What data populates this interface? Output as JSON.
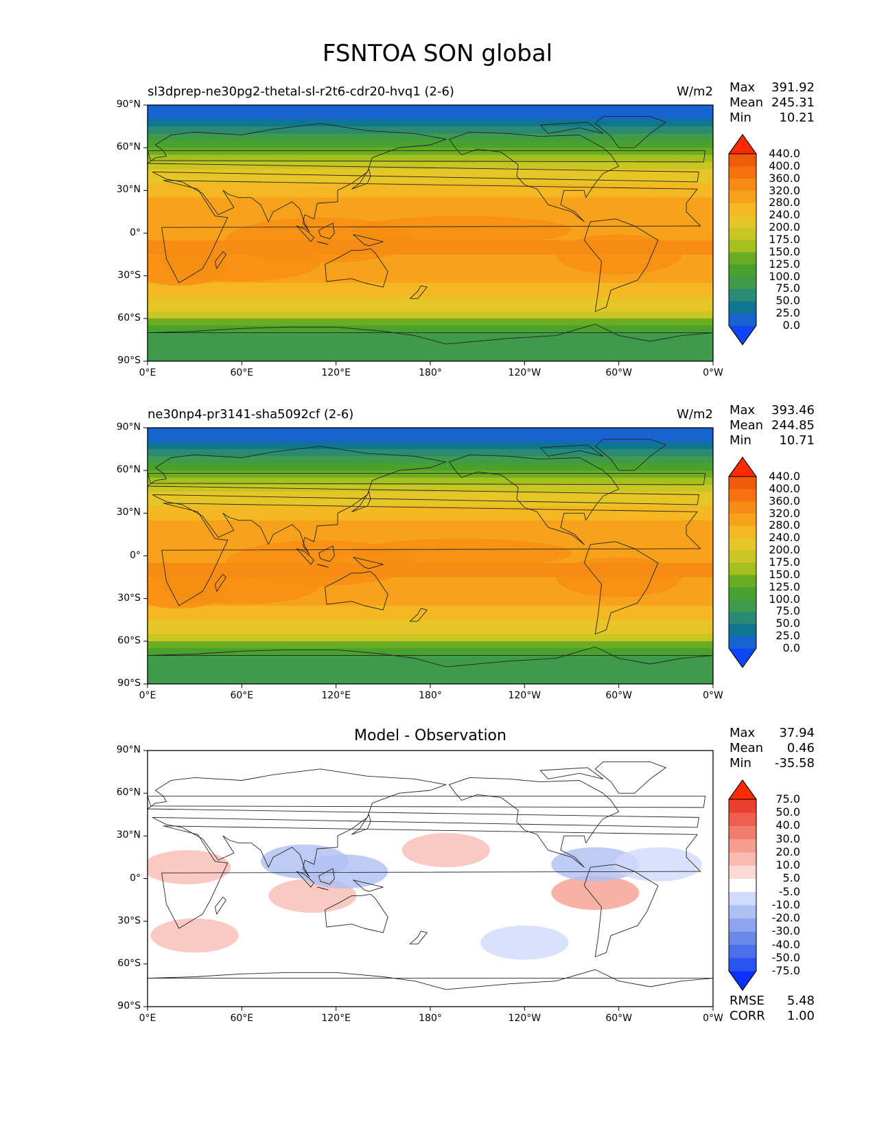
{
  "title": "FSNTOA SON global",
  "ytick_labels": [
    "90°N",
    "60°N",
    "30°N",
    "0°",
    "30°S",
    "60°S",
    "90°S"
  ],
  "xtick_labels": [
    "0°E",
    "60°E",
    "120°E",
    "180°",
    "120°W",
    "60°W",
    "0°W"
  ],
  "panels": [
    {
      "title": "sl3dprep-ne30pg2-thetal-sl-r2t6-cdr20-hvq1 (2-6)",
      "units": "W/m2",
      "stats": [
        {
          "label": "Max",
          "value": "391.92"
        },
        {
          "label": "Mean",
          "value": "245.31"
        },
        {
          "label": "Min",
          "value": "10.21"
        }
      ]
    },
    {
      "title": "ne30np4-pr3141-sha5092cf (2-6)",
      "units": "W/m2",
      "stats": [
        {
          "label": "Max",
          "value": "393.46"
        },
        {
          "label": "Mean",
          "value": "244.85"
        },
        {
          "label": "Min",
          "value": "10.71"
        }
      ]
    },
    {
      "title": "Model - Observation",
      "units": "",
      "stats": [
        {
          "label": "Max",
          "value": "37.94"
        },
        {
          "label": "Mean",
          "value": "0.46"
        },
        {
          "label": "Min",
          "value": "-35.58"
        }
      ],
      "metrics": [
        {
          "label": "RMSE",
          "value": "5.48"
        },
        {
          "label": "CORR",
          "value": "1.00"
        }
      ]
    }
  ],
  "colorbars": {
    "field": {
      "labels": [
        "440.0",
        "400.0",
        "360.0",
        "320.0",
        "280.0",
        "240.0",
        "200.0",
        "175.0",
        "150.0",
        "125.0",
        "100.0",
        "75.0",
        "50.0",
        "25.0",
        "0.0"
      ],
      "colors": [
        "#0d47f5",
        "#1764d1",
        "#0f7691",
        "#2a8a74",
        "#3f9a4a",
        "#49a12e",
        "#6aad22",
        "#a5bf1f",
        "#c9c623",
        "#e6c527",
        "#f5b822",
        "#f7a21a",
        "#f78c14",
        "#f5720e",
        "#f05a0a",
        "#ff2a00"
      ]
    },
    "diff": {
      "labels": [
        "75.0",
        "50.0",
        "40.0",
        "30.0",
        "20.0",
        "10.0",
        "5.0",
        "-5.0",
        "-10.0",
        "-20.0",
        "-30.0",
        "-40.0",
        "-50.0",
        "-75.0"
      ],
      "colors": [
        "#0a2fff",
        "#2a54f0",
        "#4b6fe8",
        "#6b8ae8",
        "#8da5ee",
        "#aebff3",
        "#d0dafa",
        "#ffffff",
        "#fbd9d4",
        "#f9bbb1",
        "#f59d8e",
        "#f27d6c",
        "#ee5e4c",
        "#ea402e",
        "#ff2a00"
      ]
    }
  },
  "chart_data": [
    {
      "type": "heatmap",
      "title": "sl3dprep-ne30pg2-thetal-sl-r2t6-cdr20-hvq1 (2-6)",
      "units": "W/m2",
      "x_range": [
        0,
        360
      ],
      "y_range": [
        -90,
        90
      ],
      "xticks": [
        "0°E",
        "60°E",
        "120°E",
        "180°",
        "120°W",
        "60°W",
        "0°W"
      ],
      "yticks": [
        "90°N",
        "60°N",
        "30°N",
        "0°",
        "30°S",
        "60°S",
        "90°S"
      ],
      "zonal_profile": {
        "lat": [
          90,
          80,
          75,
          70,
          65,
          60,
          55,
          50,
          45,
          40,
          35,
          30,
          25,
          20,
          15,
          10,
          5,
          0,
          -5,
          -10,
          -15,
          -20,
          -25,
          -30,
          -35,
          -40,
          -45,
          -50,
          -55,
          -60,
          -65,
          -70,
          -75,
          -80,
          -90
        ],
        "value": [
          12,
          20,
          40,
          70,
          95,
          120,
          150,
          180,
          205,
          225,
          245,
          260,
          275,
          290,
          300,
          305,
          300,
          310,
          320,
          325,
          320,
          315,
          305,
          295,
          285,
          270,
          250,
          225,
          190,
          160,
          120,
          95,
          85,
          80,
          80
        ]
      },
      "max": 391.92,
      "mean": 245.31,
      "min": 10.21
    },
    {
      "type": "heatmap",
      "title": "ne30np4-pr3141-sha5092cf (2-6)",
      "units": "W/m2",
      "x_range": [
        0,
        360
      ],
      "y_range": [
        -90,
        90
      ],
      "xticks": [
        "0°E",
        "60°E",
        "120°E",
        "180°",
        "120°W",
        "60°W",
        "0°W"
      ],
      "yticks": [
        "90°N",
        "60°N",
        "30°N",
        "0°",
        "30°S",
        "60°S",
        "90°S"
      ],
      "zonal_profile": {
        "lat": [
          90,
          80,
          75,
          70,
          65,
          60,
          55,
          50,
          45,
          40,
          35,
          30,
          25,
          20,
          15,
          10,
          5,
          0,
          -5,
          -10,
          -15,
          -20,
          -25,
          -30,
          -35,
          -40,
          -45,
          -50,
          -55,
          -60,
          -65,
          -70,
          -75,
          -80,
          -90
        ],
        "value": [
          12,
          20,
          40,
          70,
          95,
          120,
          150,
          180,
          205,
          225,
          245,
          260,
          275,
          290,
          300,
          305,
          300,
          310,
          320,
          325,
          320,
          315,
          305,
          295,
          285,
          270,
          250,
          225,
          190,
          160,
          120,
          95,
          85,
          80,
          80
        ]
      },
      "max": 393.46,
      "mean": 244.85,
      "min": 10.71
    },
    {
      "type": "heatmap",
      "title": "Model - Observation",
      "x_range": [
        0,
        360
      ],
      "y_range": [
        -90,
        90
      ],
      "xticks": [
        "0°E",
        "60°E",
        "120°E",
        "180°",
        "120°W",
        "60°W",
        "0°W"
      ],
      "yticks": [
        "90°N",
        "60°N",
        "30°N",
        "0°",
        "30°S",
        "60°S",
        "90°S"
      ],
      "anomalies": [
        {
          "lon": 25,
          "lat": 8,
          "value": 12
        },
        {
          "lon": 100,
          "lat": 12,
          "value": -15
        },
        {
          "lon": 105,
          "lat": -12,
          "value": 15
        },
        {
          "lon": 125,
          "lat": 5,
          "value": -12
        },
        {
          "lon": 190,
          "lat": 20,
          "value": 12
        },
        {
          "lon": 285,
          "lat": -10,
          "value": 25
        },
        {
          "lon": 285,
          "lat": 10,
          "value": -15
        },
        {
          "lon": 325,
          "lat": 10,
          "value": -10
        },
        {
          "lon": 240,
          "lat": -45,
          "value": -8
        },
        {
          "lon": 30,
          "lat": -40,
          "value": 10
        }
      ],
      "max": 37.94,
      "mean": 0.46,
      "min": -35.58,
      "rmse": 5.48,
      "corr": 1.0
    }
  ]
}
